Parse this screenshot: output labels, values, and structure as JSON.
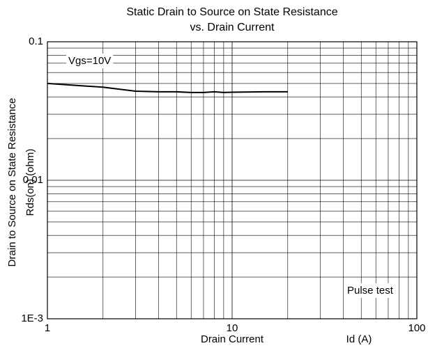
{
  "chart_data": {
    "type": "line",
    "title": [
      "Static Drain to Source on State Resistance",
      "vs. Drain Current"
    ],
    "x_label": [
      "Drain Current",
      "Id  (A)"
    ],
    "y_label": [
      "Drain to Source on State Resistance",
      "Rds(on)  (ohm)"
    ],
    "annotations": [
      "Vgs=10V",
      "Pulse test"
    ],
    "x_log": true,
    "y_log": true,
    "grid": true,
    "xlim": [
      1,
      100
    ],
    "xticks": [
      1,
      10,
      100
    ],
    "ylim": [
      0.001,
      0.1
    ],
    "yticks": [
      {
        "value": 0.001,
        "label": "1E-3"
      },
      0.01,
      0.1
    ],
    "series": [
      {
        "color": "#000000",
        "x": [
          1,
          2,
          3,
          4,
          5,
          6,
          7,
          8,
          9,
          10,
          15,
          20
        ],
        "values": [
          0.05,
          0.047,
          0.044,
          0.0435,
          0.0435,
          0.043,
          0.043,
          0.0435,
          0.043,
          0.0432,
          0.0435,
          0.0435
        ]
      }
    ]
  }
}
